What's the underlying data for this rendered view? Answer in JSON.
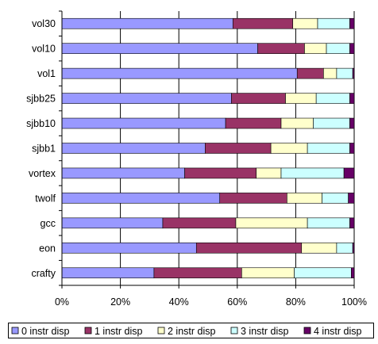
{
  "chart_data": {
    "type": "bar",
    "orientation": "horizontal",
    "stacked": "percent",
    "categories": [
      "vol30",
      "vol10",
      "vol1",
      "sjbb25",
      "sjbb10",
      "sjbb1",
      "vortex",
      "twolf",
      "gcc",
      "eon",
      "crafty"
    ],
    "series": [
      {
        "name": "0 instr disp",
        "color": "#9999ff",
        "values": [
          58.5,
          67,
          80.5,
          58,
          56,
          49,
          42,
          54,
          34.5,
          46,
          31.5
        ]
      },
      {
        "name": "1 instr disp",
        "color": "#993366",
        "values": [
          20.5,
          16,
          9,
          18.5,
          19,
          22.5,
          24.5,
          23,
          25,
          36,
          30
        ]
      },
      {
        "name": "2 instr disp",
        "color": "#ffffcc",
        "values": [
          8.5,
          7.5,
          4.5,
          10.5,
          11,
          12.5,
          8.5,
          12,
          24.5,
          12,
          18
        ]
      },
      {
        "name": "3 instr disp",
        "color": "#ccffff",
        "values": [
          11,
          8,
          5.5,
          11.5,
          12.5,
          14.5,
          21.5,
          9,
          14.5,
          5.5,
          19.5
        ]
      },
      {
        "name": "4 instr disp",
        "color": "#660066",
        "values": [
          1.5,
          1.5,
          0.5,
          1.5,
          1.5,
          1.5,
          3.5,
          2,
          1.5,
          0.5,
          1
        ]
      }
    ],
    "xlim": [
      0,
      100
    ],
    "xticks": [
      "0%",
      "20%",
      "40%",
      "60%",
      "80%",
      "100%"
    ],
    "grid": true,
    "legend_position": "bottom"
  }
}
